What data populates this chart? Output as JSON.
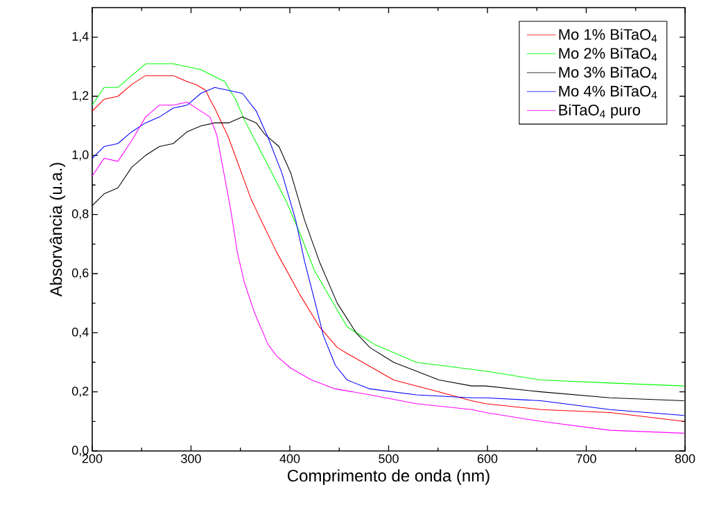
{
  "chart_data": {
    "type": "line",
    "xlabel": "Comprimento de onda (nm)",
    "ylabel": "Absorvância (u.a.)",
    "xlim": [
      200,
      800
    ],
    "ylim": [
      0,
      1.5
    ],
    "xticks": [
      200,
      300,
      400,
      500,
      600,
      700,
      800
    ],
    "yticks": [
      {
        "value": 0,
        "label": "0,0"
      },
      {
        "value": 0.2,
        "label": "0,2"
      },
      {
        "value": 0.4,
        "label": "0,4"
      },
      {
        "value": 0.6,
        "label": "0,6"
      },
      {
        "value": 0.8,
        "label": "0,8"
      },
      {
        "value": 1.0,
        "label": "1,0"
      },
      {
        "value": 1.2,
        "label": "1,2"
      },
      {
        "value": 1.4,
        "label": "1,4"
      }
    ],
    "legend": "top right",
    "grid": false,
    "marker": "none",
    "line_style": "solid",
    "series": [
      {
        "name": "Mo 1% BiTaO$_{4}$",
        "color": "#ff0000",
        "x": [
          200,
          212,
          226,
          240,
          254,
          268,
          282,
          296,
          305,
          315,
          319,
          324,
          338,
          361,
          364,
          371,
          387,
          410,
          430,
          448,
          458,
          505,
          551,
          584,
          598,
          654,
          724,
          799
        ],
        "values": [
          1.15,
          1.19,
          1.2,
          1.24,
          1.27,
          1.27,
          1.27,
          1.25,
          1.24,
          1.22,
          1.19,
          1.16,
          1.06,
          0.85,
          0.83,
          0.78,
          0.67,
          0.53,
          0.42,
          0.35,
          0.33,
          0.24,
          0.2,
          0.17,
          0.16,
          0.14,
          0.13,
          0.1
        ]
      },
      {
        "name": "Mo 2% BiTaO$_{4}$",
        "color": "#00ff00",
        "x": [
          200,
          212,
          226,
          240,
          254,
          268,
          282,
          296,
          310,
          322,
          334,
          345,
          354,
          368,
          382,
          397,
          411,
          425,
          444,
          458,
          486,
          528,
          598,
          654,
          724,
          799
        ],
        "values": [
          1.17,
          1.23,
          1.23,
          1.27,
          1.31,
          1.31,
          1.31,
          1.3,
          1.29,
          1.27,
          1.25,
          1.19,
          1.12,
          1.03,
          0.94,
          0.84,
          0.73,
          0.61,
          0.5,
          0.42,
          0.36,
          0.3,
          0.27,
          0.24,
          0.23,
          0.22
        ]
      },
      {
        "name": "Mo 3% BiTaO$_{4}$",
        "color": "#000000",
        "x": [
          200,
          212,
          226,
          240,
          254,
          268,
          282,
          296,
          310,
          324,
          338,
          352,
          366,
          375,
          389,
          401,
          415,
          430,
          448,
          467,
          481,
          505,
          551,
          584,
          598,
          654,
          724,
          799
        ],
        "values": [
          0.83,
          0.87,
          0.89,
          0.96,
          1.0,
          1.03,
          1.04,
          1.08,
          1.1,
          1.11,
          1.11,
          1.13,
          1.11,
          1.07,
          1.03,
          0.94,
          0.78,
          0.64,
          0.5,
          0.4,
          0.35,
          0.3,
          0.24,
          0.22,
          0.22,
          0.2,
          0.18,
          0.17
        ]
      },
      {
        "name": "Mo 4% BiTaO$_{4}$",
        "color": "#0000ff",
        "x": [
          200,
          212,
          226,
          240,
          254,
          268,
          282,
          296,
          310,
          324,
          338,
          352,
          366,
          378,
          392,
          406,
          415,
          425,
          434,
          446,
          458,
          481,
          528,
          584,
          598,
          654,
          724,
          799
        ],
        "values": [
          0.99,
          1.03,
          1.04,
          1.08,
          1.11,
          1.13,
          1.16,
          1.17,
          1.21,
          1.23,
          1.22,
          1.21,
          1.15,
          1.06,
          0.94,
          0.78,
          0.64,
          0.51,
          0.39,
          0.29,
          0.24,
          0.21,
          0.19,
          0.18,
          0.18,
          0.17,
          0.14,
          0.12
        ]
      },
      {
        "name": "BiTaO$_{4}$ puro",
        "color": "#ff00ff",
        "x": [
          200,
          212,
          226,
          240,
          254,
          268,
          282,
          296,
          310,
          319,
          326,
          331,
          340,
          347,
          354,
          364,
          378,
          387,
          401,
          422,
          446,
          481,
          528,
          584,
          598,
          654,
          724,
          799
        ],
        "values": [
          0.93,
          0.99,
          0.98,
          1.05,
          1.13,
          1.17,
          1.17,
          1.18,
          1.15,
          1.13,
          1.07,
          0.98,
          0.82,
          0.67,
          0.57,
          0.47,
          0.36,
          0.32,
          0.28,
          0.24,
          0.21,
          0.19,
          0.16,
          0.14,
          0.13,
          0.1,
          0.07,
          0.06
        ]
      }
    ]
  }
}
